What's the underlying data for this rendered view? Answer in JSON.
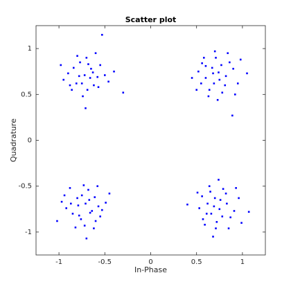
{
  "chart_data": {
    "type": "scatter",
    "title": "Scatter plot",
    "x_label": "In-Phase",
    "y_label": "Quadrature",
    "color": "#0000ff",
    "xlim": [
      -1.25,
      1.25
    ],
    "ylim": [
      -1.25,
      1.25
    ],
    "xticks": [
      -1,
      -0.5,
      0,
      0.5,
      1
    ],
    "yticks": [
      -1,
      -0.5,
      0,
      0.5,
      1
    ],
    "x": [
      -0.72,
      -0.65,
      -0.81,
      -0.58,
      -0.77,
      -0.69,
      -0.9,
      -0.55,
      -0.62,
      -0.84,
      -0.7,
      -0.74,
      -0.5,
      -0.95,
      -0.6,
      -0.78,
      -0.66,
      -0.71,
      -0.53,
      -0.3,
      -0.4,
      -0.98,
      -0.86,
      -0.63,
      -0.75,
      -0.57,
      -0.68,
      -0.8,
      -0.46,
      -0.88,
      0.68,
      0.75,
      0.6,
      0.82,
      0.71,
      0.55,
      0.9,
      0.64,
      0.78,
      0.86,
      0.7,
      0.52,
      0.95,
      0.6,
      0.73,
      0.89,
      1.05,
      0.45,
      0.67,
      0.81,
      0.58,
      0.77,
      0.63,
      0.98,
      0.74,
      0.5,
      0.84,
      0.69,
      0.92,
      0.56,
      -0.71,
      -0.64,
      -0.8,
      -0.57,
      -0.76,
      -0.68,
      -0.92,
      -0.55,
      -0.61,
      -0.85,
      -0.72,
      -0.73,
      -0.49,
      -0.97,
      -0.62,
      -0.79,
      -0.67,
      -0.7,
      -1.02,
      -0.45,
      -0.88,
      -0.6,
      -0.75,
      -0.82,
      -0.53,
      -0.66,
      -0.94,
      -0.58,
      -0.78,
      -0.87,
      0.69,
      0.76,
      0.61,
      0.83,
      0.72,
      0.56,
      0.91,
      0.65,
      0.79,
      0.87,
      0.71,
      0.53,
      0.96,
      0.62,
      0.74,
      0.68,
      1.07,
      0.4,
      0.66,
      0.82,
      0.59,
      0.78,
      0.64,
      0.99,
      0.75,
      0.51,
      0.85,
      0.7,
      0.93,
      0.57
    ],
    "values": [
      0.71,
      0.78,
      0.62,
      0.69,
      0.85,
      0.55,
      0.73,
      0.82,
      0.6,
      0.79,
      0.9,
      0.48,
      0.71,
      0.66,
      0.95,
      0.7,
      0.68,
      0.35,
      1.15,
      0.52,
      0.75,
      0.82,
      0.55,
      0.74,
      0.62,
      0.58,
      0.83,
      0.92,
      0.64,
      0.6,
      0.73,
      0.66,
      0.81,
      0.7,
      0.9,
      0.62,
      0.78,
      0.55,
      0.52,
      0.85,
      0.97,
      0.75,
      0.62,
      0.68,
      0.44,
      0.27,
      0.73,
      0.68,
      0.79,
      0.6,
      0.9,
      0.82,
      0.48,
      0.88,
      0.74,
      0.55,
      0.95,
      0.62,
      0.5,
      0.84,
      -0.69,
      -0.77,
      -0.63,
      -0.72,
      -0.86,
      -0.54,
      -0.74,
      -0.83,
      -0.62,
      -0.8,
      -0.93,
      -0.49,
      -0.68,
      -0.67,
      -0.96,
      -0.71,
      -0.65,
      -1.07,
      -0.88,
      -0.58,
      -0.52,
      -0.88,
      -0.6,
      -0.95,
      -0.76,
      -0.79,
      -0.6,
      -0.5,
      -0.82,
      -0.69,
      -0.72,
      -0.65,
      -0.8,
      -0.69,
      -0.89,
      -0.61,
      -0.77,
      -0.56,
      -0.53,
      -0.84,
      -0.96,
      -0.74,
      -0.63,
      -0.69,
      -0.43,
      -1.05,
      -0.78,
      -0.7,
      -0.8,
      -0.58,
      -0.92,
      -0.83,
      -0.5,
      -0.9,
      -0.75,
      -0.57,
      -0.96,
      -0.63,
      -0.52,
      -0.86
    ]
  }
}
